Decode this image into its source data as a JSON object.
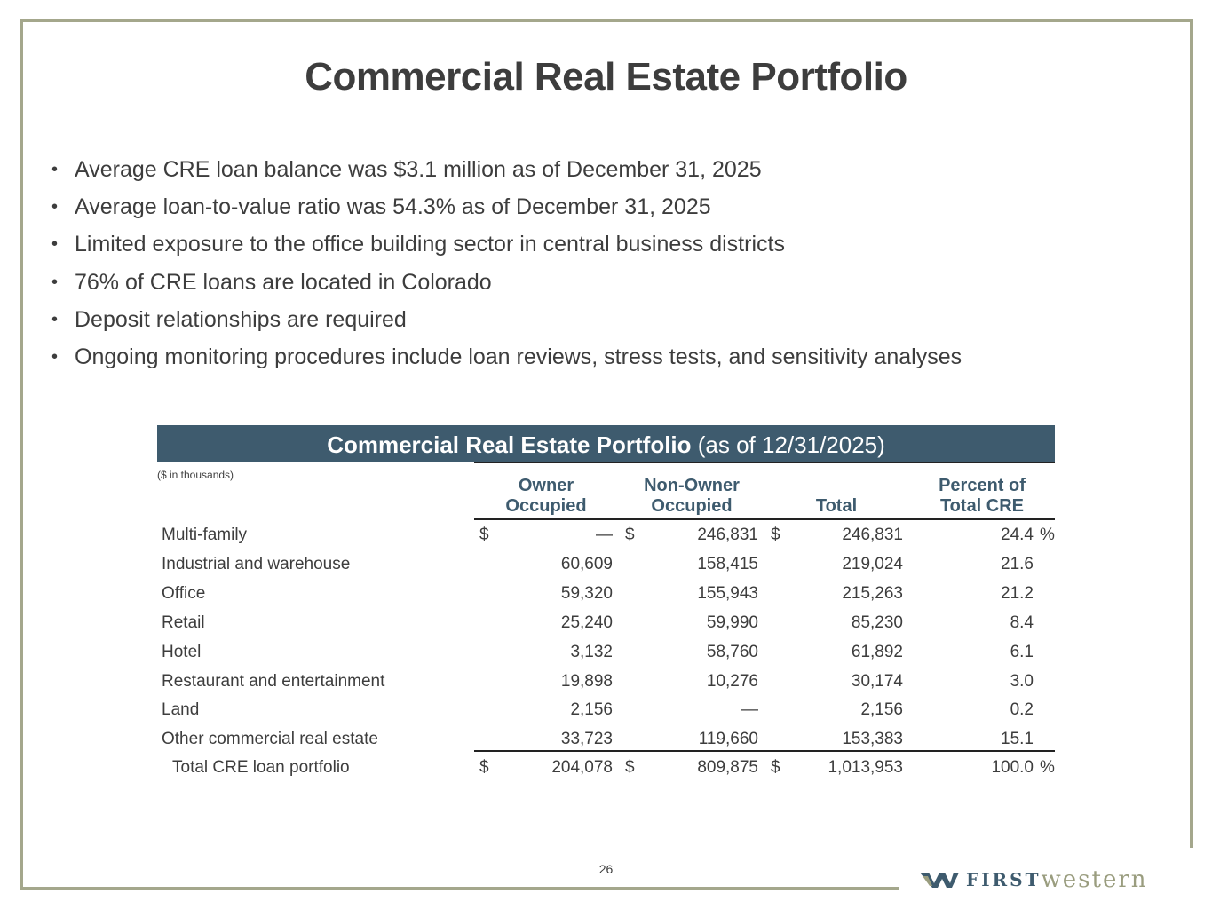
{
  "title": "Commercial Real Estate Portfolio",
  "bullets": [
    "Average CRE loan balance was $3.1 million as of December 31, 2025",
    "Average loan-to-value ratio was 54.3% as of December 31, 2025",
    "Limited exposure to the office building sector in central business districts",
    "76% of CRE loans are located in Colorado",
    "Deposit relationships are required",
    "Ongoing monitoring procedures include loan reviews, stress tests, and sensitivity analyses"
  ],
  "table": {
    "title_bold": "Commercial Real Estate Portfolio",
    "title_rest": " (as of 12/31/2025)",
    "units": "($ in thousands)",
    "headers": {
      "owner_1": "Owner",
      "owner_2": "Occupied",
      "nonowner_1": "Non-Owner",
      "nonowner_2": "Occupied",
      "total": "Total",
      "pct_1": "Percent of",
      "pct_2": "Total CRE"
    },
    "dollar": "$",
    "percent": "%",
    "rows": [
      {
        "label": "Multi-family",
        "owner": "—",
        "nonowner": "246,831",
        "total": "246,831",
        "pct": "24.4"
      },
      {
        "label": "Industrial and warehouse",
        "owner": "60,609",
        "nonowner": "158,415",
        "total": "219,024",
        "pct": "21.6"
      },
      {
        "label": "Office",
        "owner": "59,320",
        "nonowner": "155,943",
        "total": "215,263",
        "pct": "21.2"
      },
      {
        "label": "Retail",
        "owner": "25,240",
        "nonowner": "59,990",
        "total": "85,230",
        "pct": "8.4"
      },
      {
        "label": "Hotel",
        "owner": "3,132",
        "nonowner": "58,760",
        "total": "61,892",
        "pct": "6.1"
      },
      {
        "label": "Restaurant and entertainment",
        "owner": "19,898",
        "nonowner": "10,276",
        "total": "30,174",
        "pct": "3.0"
      },
      {
        "label": "Land",
        "owner": "2,156",
        "nonowner": "—",
        "total": "2,156",
        "pct": "0.2"
      },
      {
        "label": "Other commercial real estate",
        "owner": "33,723",
        "nonowner": "119,660",
        "total": "153,383",
        "pct": "15.1"
      }
    ],
    "total_row": {
      "label": "Total CRE loan portfolio",
      "owner": "204,078",
      "nonowner": "809,875",
      "total": "1,013,953",
      "pct": "100.0"
    }
  },
  "page_number": "26",
  "logo": {
    "first": "FIRST",
    "western": "western",
    "icon": "w-mark-icon"
  },
  "colors": {
    "frame": "#a4a78c",
    "band": "#3e5b6e",
    "text": "#3d3d3d"
  }
}
